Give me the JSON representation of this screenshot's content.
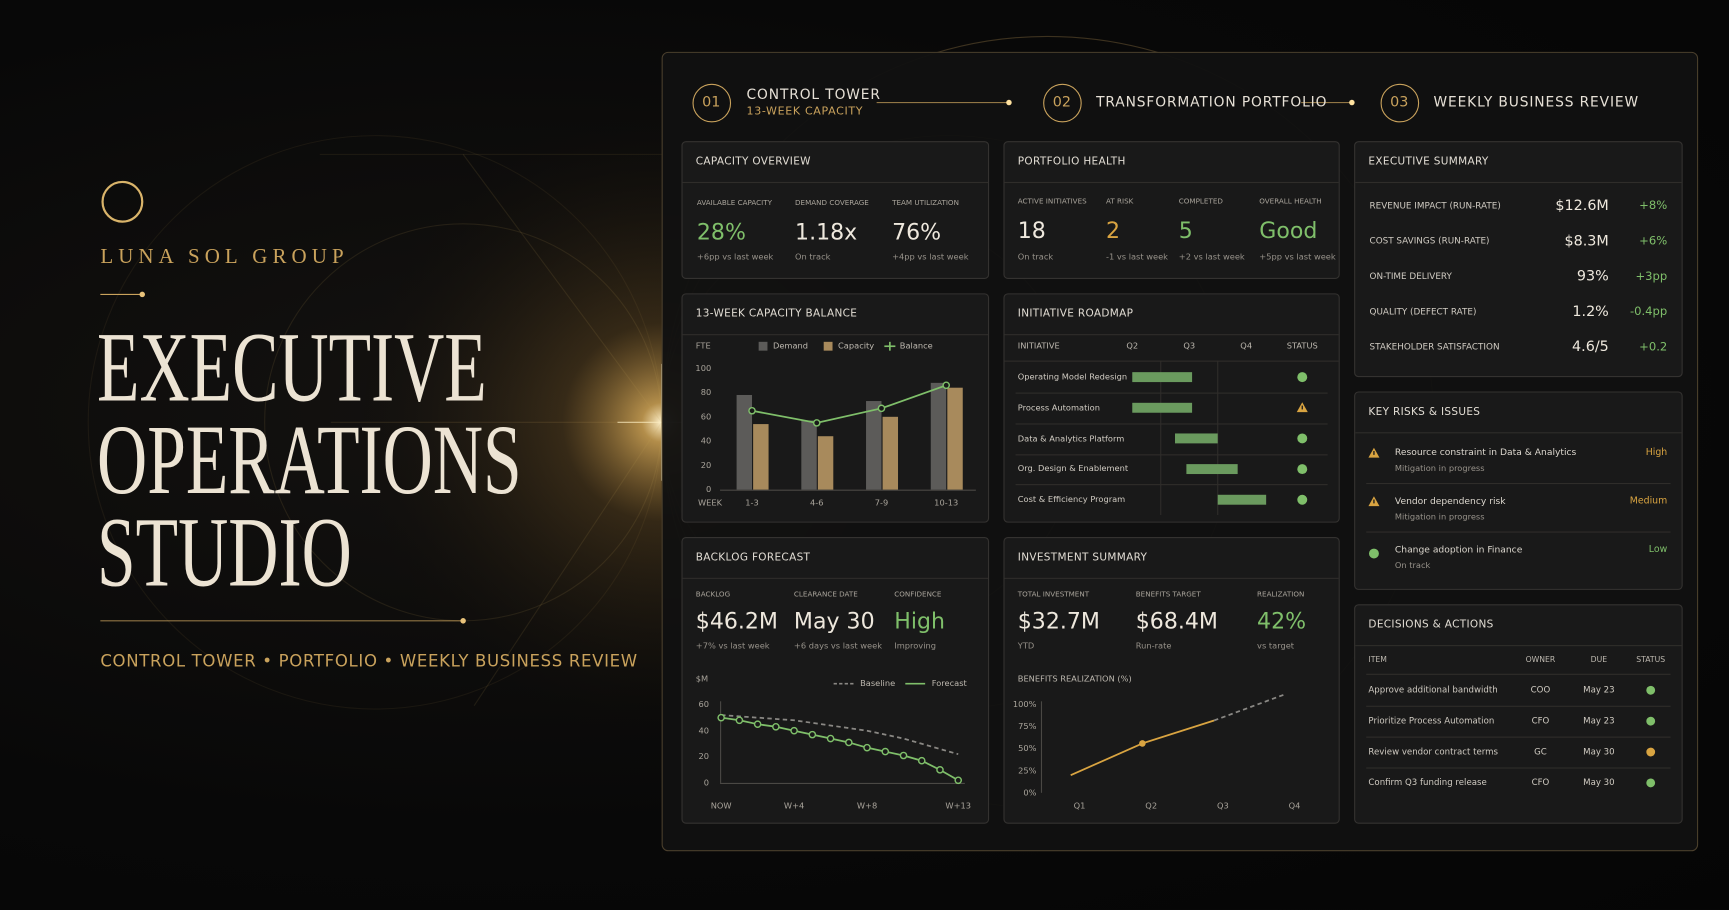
{
  "brand": {
    "name": "LUNA SOL GROUP",
    "title_lines": [
      "EXECUTIVE",
      "OPERATIONS",
      "STUDIO"
    ],
    "tagline": "CONTROL TOWER • PORTFOLIO • WEEKLY BUSINESS REVIEW"
  },
  "tabs": [
    {
      "num": "01",
      "label": "CONTROL TOWER",
      "sub": "13-WEEK CAPACITY"
    },
    {
      "num": "02",
      "label": "TRANSFORMATION PORTFOLIO"
    },
    {
      "num": "03",
      "label": "WEEKLY BUSINESS REVIEW"
    }
  ],
  "capacity_overview": {
    "title": "CAPACITY OVERVIEW",
    "kpis": [
      {
        "label": "AVAILABLE CAPACITY",
        "value": "28%",
        "note": "+6pp vs last week",
        "color": "#7fbf6a"
      },
      {
        "label": "DEMAND COVERAGE",
        "value": "1.18x",
        "note": "On track"
      },
      {
        "label": "TEAM UTILIZATION",
        "value": "76%",
        "note": "+4pp vs last week"
      }
    ]
  },
  "portfolio_health": {
    "title": "PORTFOLIO HEALTH",
    "kpis": [
      {
        "label": "ACTIVE INITIATIVES",
        "value": "18",
        "note": "On track"
      },
      {
        "label": "AT RISK",
        "value": "2",
        "note": "-1 vs last week",
        "color": "#d9a441"
      },
      {
        "label": "COMPLETED",
        "value": "5",
        "note": "+2 vs last week",
        "color": "#7fbf6a"
      },
      {
        "label": "OVERALL HEALTH",
        "value": "Good",
        "note": "+5pp vs last week",
        "color": "#7fbf6a"
      }
    ]
  },
  "capacity_balance": {
    "title": "13-WEEK CAPACITY BALANCE",
    "chart_data": {
      "type": "bar",
      "y_label": "FTE",
      "x_label": "WEEK",
      "categories": [
        "1-3",
        "4-6",
        "7-9",
        "10-13"
      ],
      "series": [
        {
          "name": "Demand",
          "color": "#5c5b59",
          "values": [
            78,
            57,
            73,
            88
          ]
        },
        {
          "name": "Capacity",
          "color": "#a88a5c",
          "values": [
            54,
            44,
            60,
            84
          ]
        },
        {
          "name": "Balance",
          "type": "line",
          "color": "#7fbf6a",
          "values": [
            65,
            55,
            67,
            86
          ]
        }
      ],
      "ylim": [
        0,
        100
      ],
      "yticks": [
        0,
        20,
        40,
        60,
        80,
        100
      ]
    }
  },
  "roadmap": {
    "title": "INITIATIVE ROADMAP",
    "columns": [
      "INITIATIVE",
      "Q2",
      "Q3",
      "Q4",
      "STATUS"
    ],
    "xlim": [
      2,
      5
    ],
    "bar_color": "#6a9a5e",
    "rows": [
      {
        "name": "Operating Model Redesign",
        "start": 2.5,
        "end": 3.55,
        "status_color": "#7fbf6a",
        "status_icon": "dot"
      },
      {
        "name": "Process Automation",
        "start": 2.5,
        "end": 3.55,
        "status_color": "#d9a441",
        "status_icon": "triangle"
      },
      {
        "name": "Data & Analytics Platform",
        "start": 3.25,
        "end": 4.0,
        "status_color": "#7fbf6a",
        "status_icon": "dot"
      },
      {
        "name": "Org. Design & Enablement",
        "start": 3.45,
        "end": 4.35,
        "status_color": "#7fbf6a",
        "status_icon": "dot"
      },
      {
        "name": "Cost & Efficiency Program",
        "start": 4.0,
        "end": 4.85,
        "status_color": "#7fbf6a",
        "status_icon": "dot"
      }
    ]
  },
  "backlog": {
    "title": "BACKLOG FORECAST",
    "kpis": [
      {
        "label": "BACKLOG",
        "value": "$46.2M",
        "note": "+7% vs last week"
      },
      {
        "label": "CLEARANCE DATE",
        "value": "May 30",
        "note": "+6 days vs last week"
      },
      {
        "label": "CONFIDENCE",
        "value": "High",
        "note": "Improving",
        "color": "#7fbf6a"
      }
    ],
    "chart_data": {
      "type": "line",
      "y_label": "$M",
      "categories": [
        "NOW",
        null,
        null,
        null,
        "W+4",
        null,
        null,
        null,
        "W+8",
        null,
        null,
        null,
        null,
        "W+13"
      ],
      "series": [
        {
          "name": "Baseline",
          "color": "#8a8884",
          "dash": true,
          "values": [
            52,
            51,
            50,
            49,
            48,
            46,
            44,
            42,
            40,
            37,
            34,
            30,
            26,
            22
          ]
        },
        {
          "name": "Forecast",
          "color": "#7fbf6a",
          "markers": true,
          "values": [
            50,
            48,
            45,
            43,
            40,
            37,
            34,
            31,
            27,
            24,
            21,
            17,
            10,
            2
          ]
        }
      ],
      "ylim": [
        0,
        60
      ],
      "yticks": [
        0,
        20,
        40,
        60
      ]
    }
  },
  "investment": {
    "title": "INVESTMENT SUMMARY",
    "kpis": [
      {
        "label": "TOTAL INVESTMENT",
        "value": "$32.7M",
        "note": "YTD"
      },
      {
        "label": "BENEFITS TARGET",
        "value": "$68.4M",
        "note": "Run-rate"
      },
      {
        "label": "REALIZATION",
        "value": "42%",
        "note": "vs target",
        "color": "#7fbf6a"
      }
    ],
    "chart_data": {
      "type": "line",
      "title": "BENEFITS REALIZATION (%)",
      "categories": [
        "Q1",
        "Q2",
        "Q3",
        "Q4"
      ],
      "series": [
        {
          "color": "#d9a441",
          "values": [
            20,
            56,
            82,
            null
          ]
        },
        {
          "color": "#8a8884",
          "dash": true,
          "values": [
            null,
            null,
            82,
            112
          ]
        }
      ],
      "ylim": [
        0,
        100
      ],
      "yticks": [
        {
          "value": 0,
          "label": "0%"
        },
        {
          "value": 25,
          "label": "25%"
        },
        {
          "value": 50,
          "label": "50%"
        },
        {
          "value": 75,
          "label": "75%"
        },
        {
          "value": 100,
          "label": "100%"
        }
      ]
    }
  },
  "executive_summary": {
    "title": "EXECUTIVE SUMMARY",
    "delta_color": "#7fbf6a",
    "rows": [
      {
        "label": "REVENUE IMPACT (RUN-RATE)",
        "value": "$12.6M",
        "delta": "+8%"
      },
      {
        "label": "COST SAVINGS (RUN-RATE)",
        "value": "$8.3M",
        "delta": "+6%"
      },
      {
        "label": "ON-TIME DELIVERY",
        "value": "93%",
        "delta": "+3pp"
      },
      {
        "label": "QUALITY (DEFECT RATE)",
        "value": "1.2%",
        "delta": "-0.4pp"
      },
      {
        "label": "STAKEHOLDER SATISFACTION",
        "value": "4.6/5",
        "delta": "+0.2"
      }
    ]
  },
  "key_risks": {
    "title": "KEY RISKS & ISSUES",
    "items": [
      {
        "title": "Resource constraint in Data & Analytics",
        "status": "Mitigation in progress",
        "level": "High",
        "color": "#d9a441",
        "icon": "triangle"
      },
      {
        "title": "Vendor dependency risk",
        "status": "Mitigation in progress",
        "level": "Medium",
        "color": "#d9a441",
        "icon": "triangle"
      },
      {
        "title": "Change adoption in Finance",
        "status": "On track",
        "level": "Low",
        "color": "#7fbf6a",
        "icon": "dot"
      }
    ]
  },
  "decisions": {
    "title": "DECISIONS & ACTIONS",
    "columns": [
      "ITEM",
      "OWNER",
      "DUE",
      "STATUS"
    ],
    "rows": [
      {
        "cells": [
          "Approve additional bandwidth",
          "COO",
          "May 23"
        ],
        "status_color": "#7fbf6a"
      },
      {
        "cells": [
          "Prioritize Process Automation",
          "CFO",
          "May 23"
        ],
        "status_color": "#7fbf6a"
      },
      {
        "cells": [
          "Review vendor contract terms",
          "GC",
          "May 30"
        ],
        "status_color": "#d9a441"
      },
      {
        "cells": [
          "Confirm Q3 funding release",
          "CFO",
          "May 30"
        ],
        "status_color": "#7fbf6a"
      }
    ]
  }
}
